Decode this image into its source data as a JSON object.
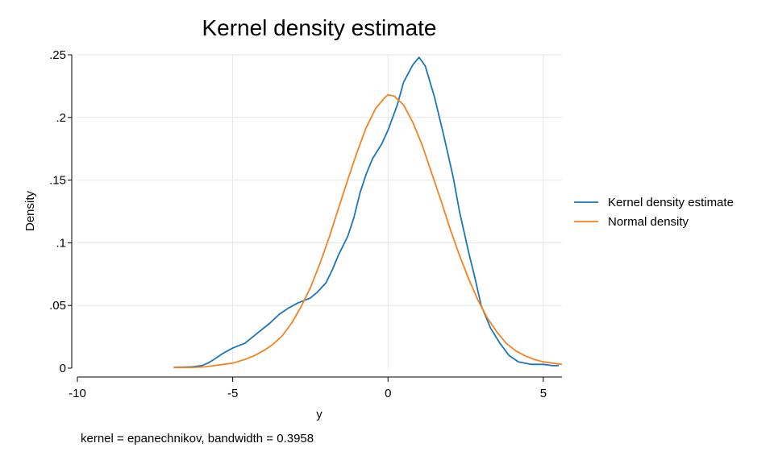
{
  "chart_data": {
    "type": "line",
    "title": "Kernel density estimate",
    "xlabel": "y",
    "ylabel": "Density",
    "note": "kernel = epanechnikov, bandwidth = 0.3958",
    "xlim": [
      -10,
      5.6
    ],
    "ylim": [
      0,
      0.25
    ],
    "grid": true,
    "legend_position": "right",
    "x_ticks": [
      {
        "value": -10,
        "label": "-10"
      },
      {
        "value": -5,
        "label": "-5"
      },
      {
        "value": 0,
        "label": "0"
      },
      {
        "value": 5,
        "label": "5"
      }
    ],
    "y_ticks": [
      {
        "value": 0,
        "label": "0"
      },
      {
        "value": 0.05,
        "label": ".05"
      },
      {
        "value": 0.1,
        "label": ".1"
      },
      {
        "value": 0.15,
        "label": ".15"
      },
      {
        "value": 0.2,
        "label": ".2"
      },
      {
        "value": 0.25,
        "label": ".25"
      }
    ],
    "series": [
      {
        "name": "Kernel density estimate",
        "color": "#1a76b8",
        "points": [
          [
            -6.9,
            0.0005
          ],
          [
            -6.3,
            0.001
          ],
          [
            -6.0,
            0.002
          ],
          [
            -5.8,
            0.004
          ],
          [
            -5.6,
            0.007
          ],
          [
            -5.3,
            0.012
          ],
          [
            -5.0,
            0.016
          ],
          [
            -4.6,
            0.02
          ],
          [
            -4.2,
            0.028
          ],
          [
            -3.8,
            0.036
          ],
          [
            -3.5,
            0.043
          ],
          [
            -3.2,
            0.048
          ],
          [
            -2.9,
            0.052
          ],
          [
            -2.5,
            0.056
          ],
          [
            -2.3,
            0.06
          ],
          [
            -2.0,
            0.068
          ],
          [
            -1.8,
            0.078
          ],
          [
            -1.6,
            0.09
          ],
          [
            -1.3,
            0.105
          ],
          [
            -1.1,
            0.12
          ],
          [
            -0.9,
            0.14
          ],
          [
            -0.7,
            0.155
          ],
          [
            -0.5,
            0.167
          ],
          [
            -0.2,
            0.179
          ],
          [
            0.0,
            0.19
          ],
          [
            0.3,
            0.21
          ],
          [
            0.5,
            0.228
          ],
          [
            0.8,
            0.242
          ],
          [
            1.0,
            0.248
          ],
          [
            1.2,
            0.241
          ],
          [
            1.5,
            0.216
          ],
          [
            1.8,
            0.185
          ],
          [
            2.1,
            0.152
          ],
          [
            2.3,
            0.125
          ],
          [
            2.6,
            0.092
          ],
          [
            2.8,
            0.072
          ],
          [
            3.0,
            0.05
          ],
          [
            3.3,
            0.032
          ],
          [
            3.6,
            0.02
          ],
          [
            3.9,
            0.01
          ],
          [
            4.2,
            0.005
          ],
          [
            4.6,
            0.003
          ],
          [
            5.0,
            0.003
          ],
          [
            5.3,
            0.002
          ],
          [
            5.5,
            0.002
          ]
        ]
      },
      {
        "name": "Normal density",
        "color": "#f58220",
        "points": [
          [
            -6.9,
            0.0005
          ],
          [
            -6.3,
            0.0006
          ],
          [
            -5.9,
            0.001
          ],
          [
            -5.6,
            0.002
          ],
          [
            -5.3,
            0.003
          ],
          [
            -5.0,
            0.004
          ],
          [
            -4.6,
            0.007
          ],
          [
            -4.3,
            0.01
          ],
          [
            -4.0,
            0.014
          ],
          [
            -3.7,
            0.019
          ],
          [
            -3.4,
            0.026
          ],
          [
            -3.1,
            0.036
          ],
          [
            -2.8,
            0.049
          ],
          [
            -2.5,
            0.064
          ],
          [
            -2.2,
            0.083
          ],
          [
            -1.9,
            0.104
          ],
          [
            -1.6,
            0.127
          ],
          [
            -1.3,
            0.15
          ],
          [
            -1.0,
            0.172
          ],
          [
            -0.7,
            0.192
          ],
          [
            -0.4,
            0.207
          ],
          [
            -0.1,
            0.216
          ],
          [
            0.0,
            0.218
          ],
          [
            0.2,
            0.217
          ],
          [
            0.5,
            0.21
          ],
          [
            0.8,
            0.196
          ],
          [
            1.1,
            0.178
          ],
          [
            1.4,
            0.156
          ],
          [
            1.7,
            0.134
          ],
          [
            2.0,
            0.111
          ],
          [
            2.3,
            0.09
          ],
          [
            2.6,
            0.071
          ],
          [
            2.9,
            0.054
          ],
          [
            3.2,
            0.04
          ],
          [
            3.5,
            0.029
          ],
          [
            3.8,
            0.02
          ],
          [
            4.1,
            0.014
          ],
          [
            4.4,
            0.01
          ],
          [
            4.7,
            0.007
          ],
          [
            5.0,
            0.005
          ],
          [
            5.3,
            0.004
          ],
          [
            5.6,
            0.003
          ]
        ]
      }
    ]
  }
}
